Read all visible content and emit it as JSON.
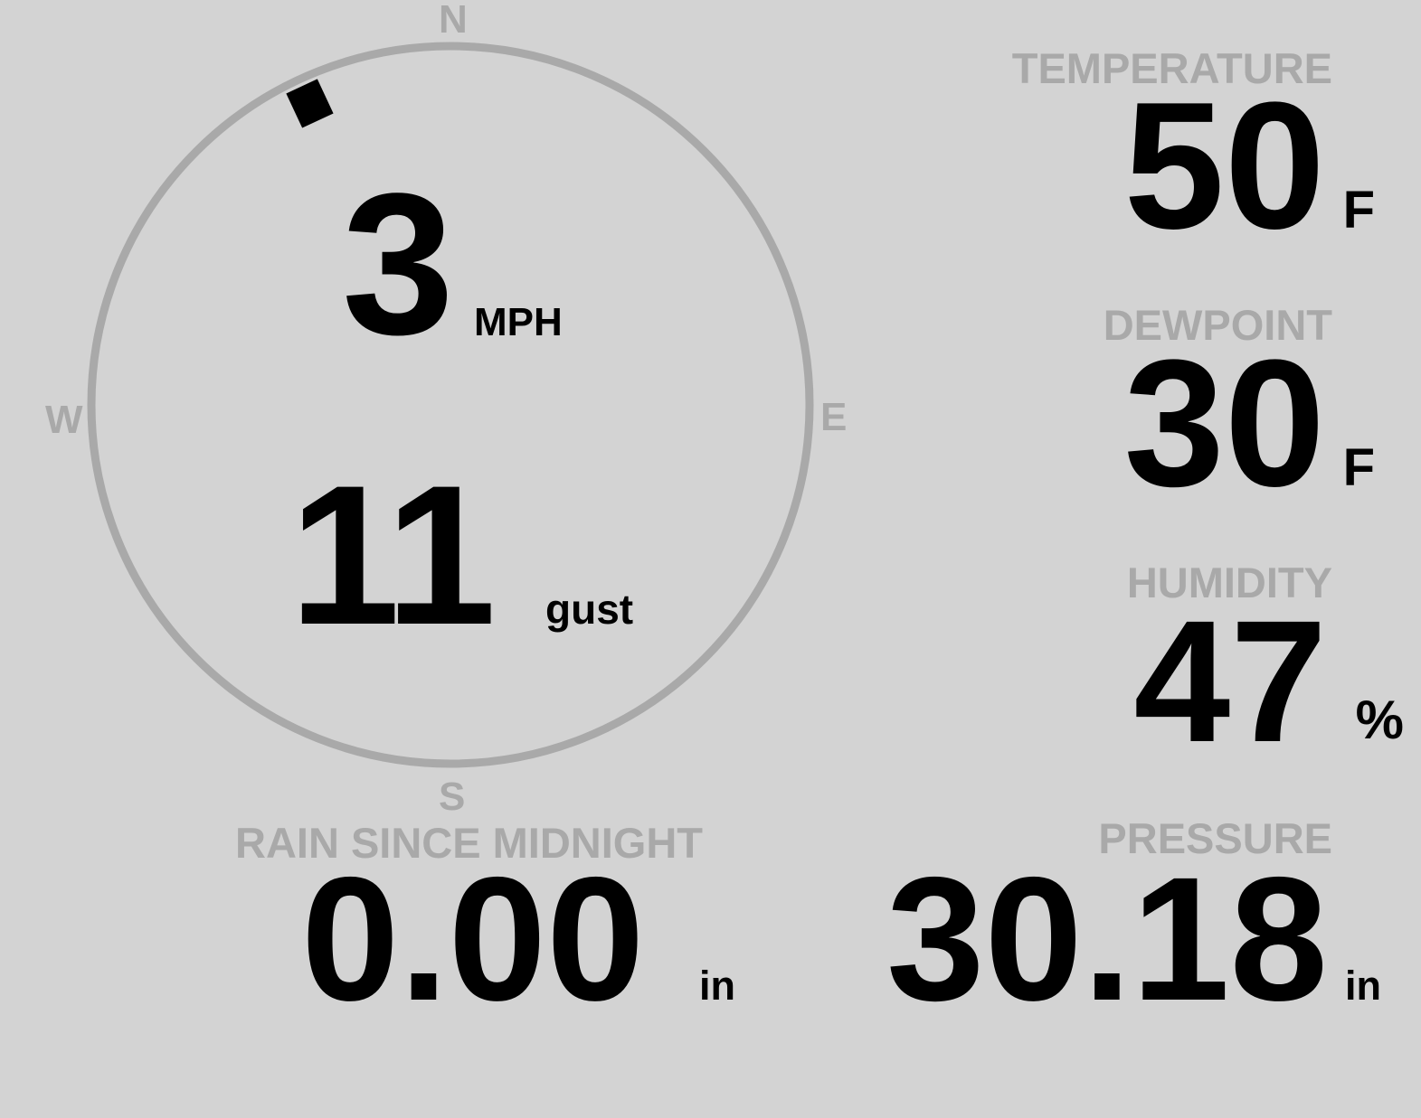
{
  "colors": {
    "background": "#d3d3d3",
    "label": "#a9a9a9",
    "value": "#000000",
    "compass_ring": "#a9a9a9"
  },
  "wind": {
    "cardinals": {
      "n": "N",
      "e": "E",
      "s": "S",
      "w": "W"
    },
    "direction_deg": 335,
    "speed": "3",
    "speed_unit": "MPH",
    "gust": "11",
    "gust_label": "gust"
  },
  "temperature": {
    "label": "TEMPERATURE",
    "value": "50",
    "unit": "F"
  },
  "dewpoint": {
    "label": "DEWPOINT",
    "value": "30",
    "unit": "F"
  },
  "humidity": {
    "label": "HUMIDITY",
    "value": "47",
    "unit": "%"
  },
  "pressure": {
    "label": "PRESSURE",
    "value": "30.18",
    "unit": "in"
  },
  "rain": {
    "label": "RAIN SINCE MIDNIGHT",
    "value": "0.00",
    "unit": "in"
  }
}
